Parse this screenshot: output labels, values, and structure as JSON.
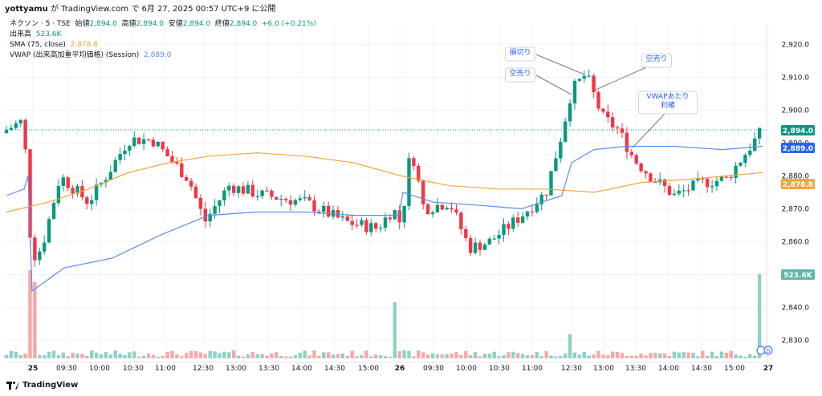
{
  "header": {
    "author": "yottyamu",
    "publish_text": "が TradingView.com で 6月 27, 2025 00:57 UTC+9 に公開"
  },
  "legend": {
    "symbol": "ネクソン · 5 · TSE",
    "open_label": "始値",
    "open": "2,894.0",
    "high_label": "高値",
    "high": "2,894.0",
    "low_label": "安値",
    "low": "2,894.0",
    "close_label": "終値",
    "close": "2,894.0",
    "change": "+6.0 (+0.21%)",
    "volume_label": "出来高",
    "volume": "523.6K",
    "sma_label": "SMA (75, close)",
    "sma": "2,878.8",
    "vwap_label": "VWAP (出来高加重平均価格) (Session)",
    "vwap": "2,889.0"
  },
  "brand": "TradingView",
  "colors": {
    "up": "#089981",
    "down": "#f23645",
    "up_volume": "#8fd1c5",
    "down_volume": "#f7a9a7",
    "sma": "#f7a43a",
    "vwap": "#5b8def",
    "grid": "#f0f3fa",
    "axis_text": "#131722",
    "annotation_text": "#2962ff"
  },
  "annotations": [
    "損切り",
    "空売り",
    "空売り",
    "VWAPあたり\n利確"
  ],
  "price_tags": [
    {
      "value": "2,894.0",
      "color": "#089981"
    },
    {
      "value": "2,889.0",
      "color": "#2962ff"
    },
    {
      "value": "2,878.8",
      "color": "#f7a43a"
    },
    {
      "value": "523.6K",
      "color": "#5fb7a8"
    }
  ],
  "chart_data": {
    "type": "candlestick",
    "y_ticks": [
      "2,920.0",
      "2,910.0",
      "2,900.0",
      "2,890.0",
      "2,880.0",
      "2,870.0",
      "2,860.0",
      "2,850.0",
      "2,840.0",
      "2,830.0"
    ],
    "x_ticks": [
      "25",
      "09:30",
      "10:00",
      "10:30",
      "11:00",
      "12:30",
      "13:00",
      "13:30",
      "14:00",
      "14:30",
      "15:00",
      "26",
      "09:30",
      "10:00",
      "10:30",
      "11:00",
      "12:30",
      "13:00",
      "13:30",
      "14:00",
      "14:30",
      "15:00",
      "27"
    ],
    "ylim": [
      2826,
      2926
    ],
    "grid": true,
    "series": [
      {
        "name": "SMA (75, close)",
        "last": 2878.8
      },
      {
        "name": "VWAP (出来高加重平均価格) (Session)",
        "last": 2889.0
      }
    ]
  }
}
